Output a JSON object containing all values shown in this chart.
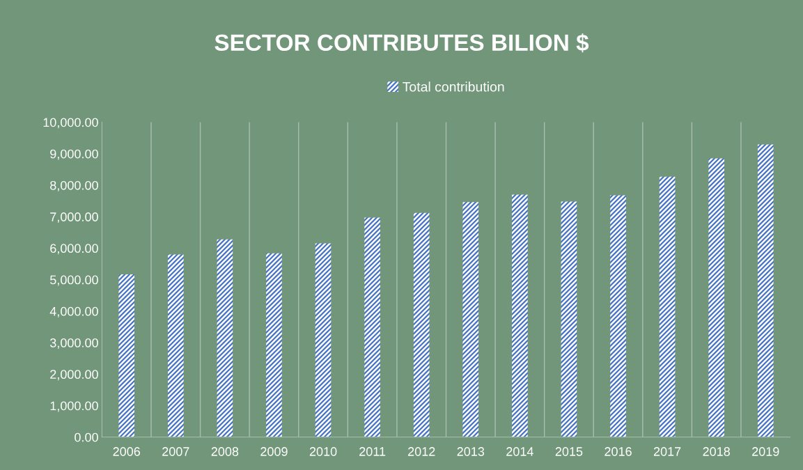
{
  "chart_data": {
    "type": "bar",
    "title": "SECTOR CONTRIBUTES BILION $",
    "categories": [
      "2006",
      "2007",
      "2008",
      "2009",
      "2010",
      "2011",
      "2012",
      "2013",
      "2014",
      "2015",
      "2016",
      "2017",
      "2018",
      "2019"
    ],
    "series": [
      {
        "name": "Total contribution",
        "color": "#4472c4",
        "values": [
          5170,
          5800,
          6280,
          5840,
          6150,
          6970,
          7120,
          7460,
          7700,
          7480,
          7680,
          8270,
          8850,
          9290
        ]
      }
    ],
    "ylim": [
      0,
      10000
    ],
    "yticks": [
      {
        "value": 0,
        "label": "0.00"
      },
      {
        "value": 1000,
        "label": "1,000.00"
      },
      {
        "value": 2000,
        "label": "2,000.00"
      },
      {
        "value": 3000,
        "label": "3,000.00"
      },
      {
        "value": 4000,
        "label": "4,000.00"
      },
      {
        "value": 5000,
        "label": "5,000.00"
      },
      {
        "value": 6000,
        "label": "6,000.00"
      },
      {
        "value": 7000,
        "label": "7,000.00"
      },
      {
        "value": 8000,
        "label": "8,000.00"
      },
      {
        "value": 9000,
        "label": "9,000.00"
      },
      {
        "value": 10000,
        "label": "10,000.00"
      }
    ],
    "grid": "x",
    "legend": "top"
  }
}
